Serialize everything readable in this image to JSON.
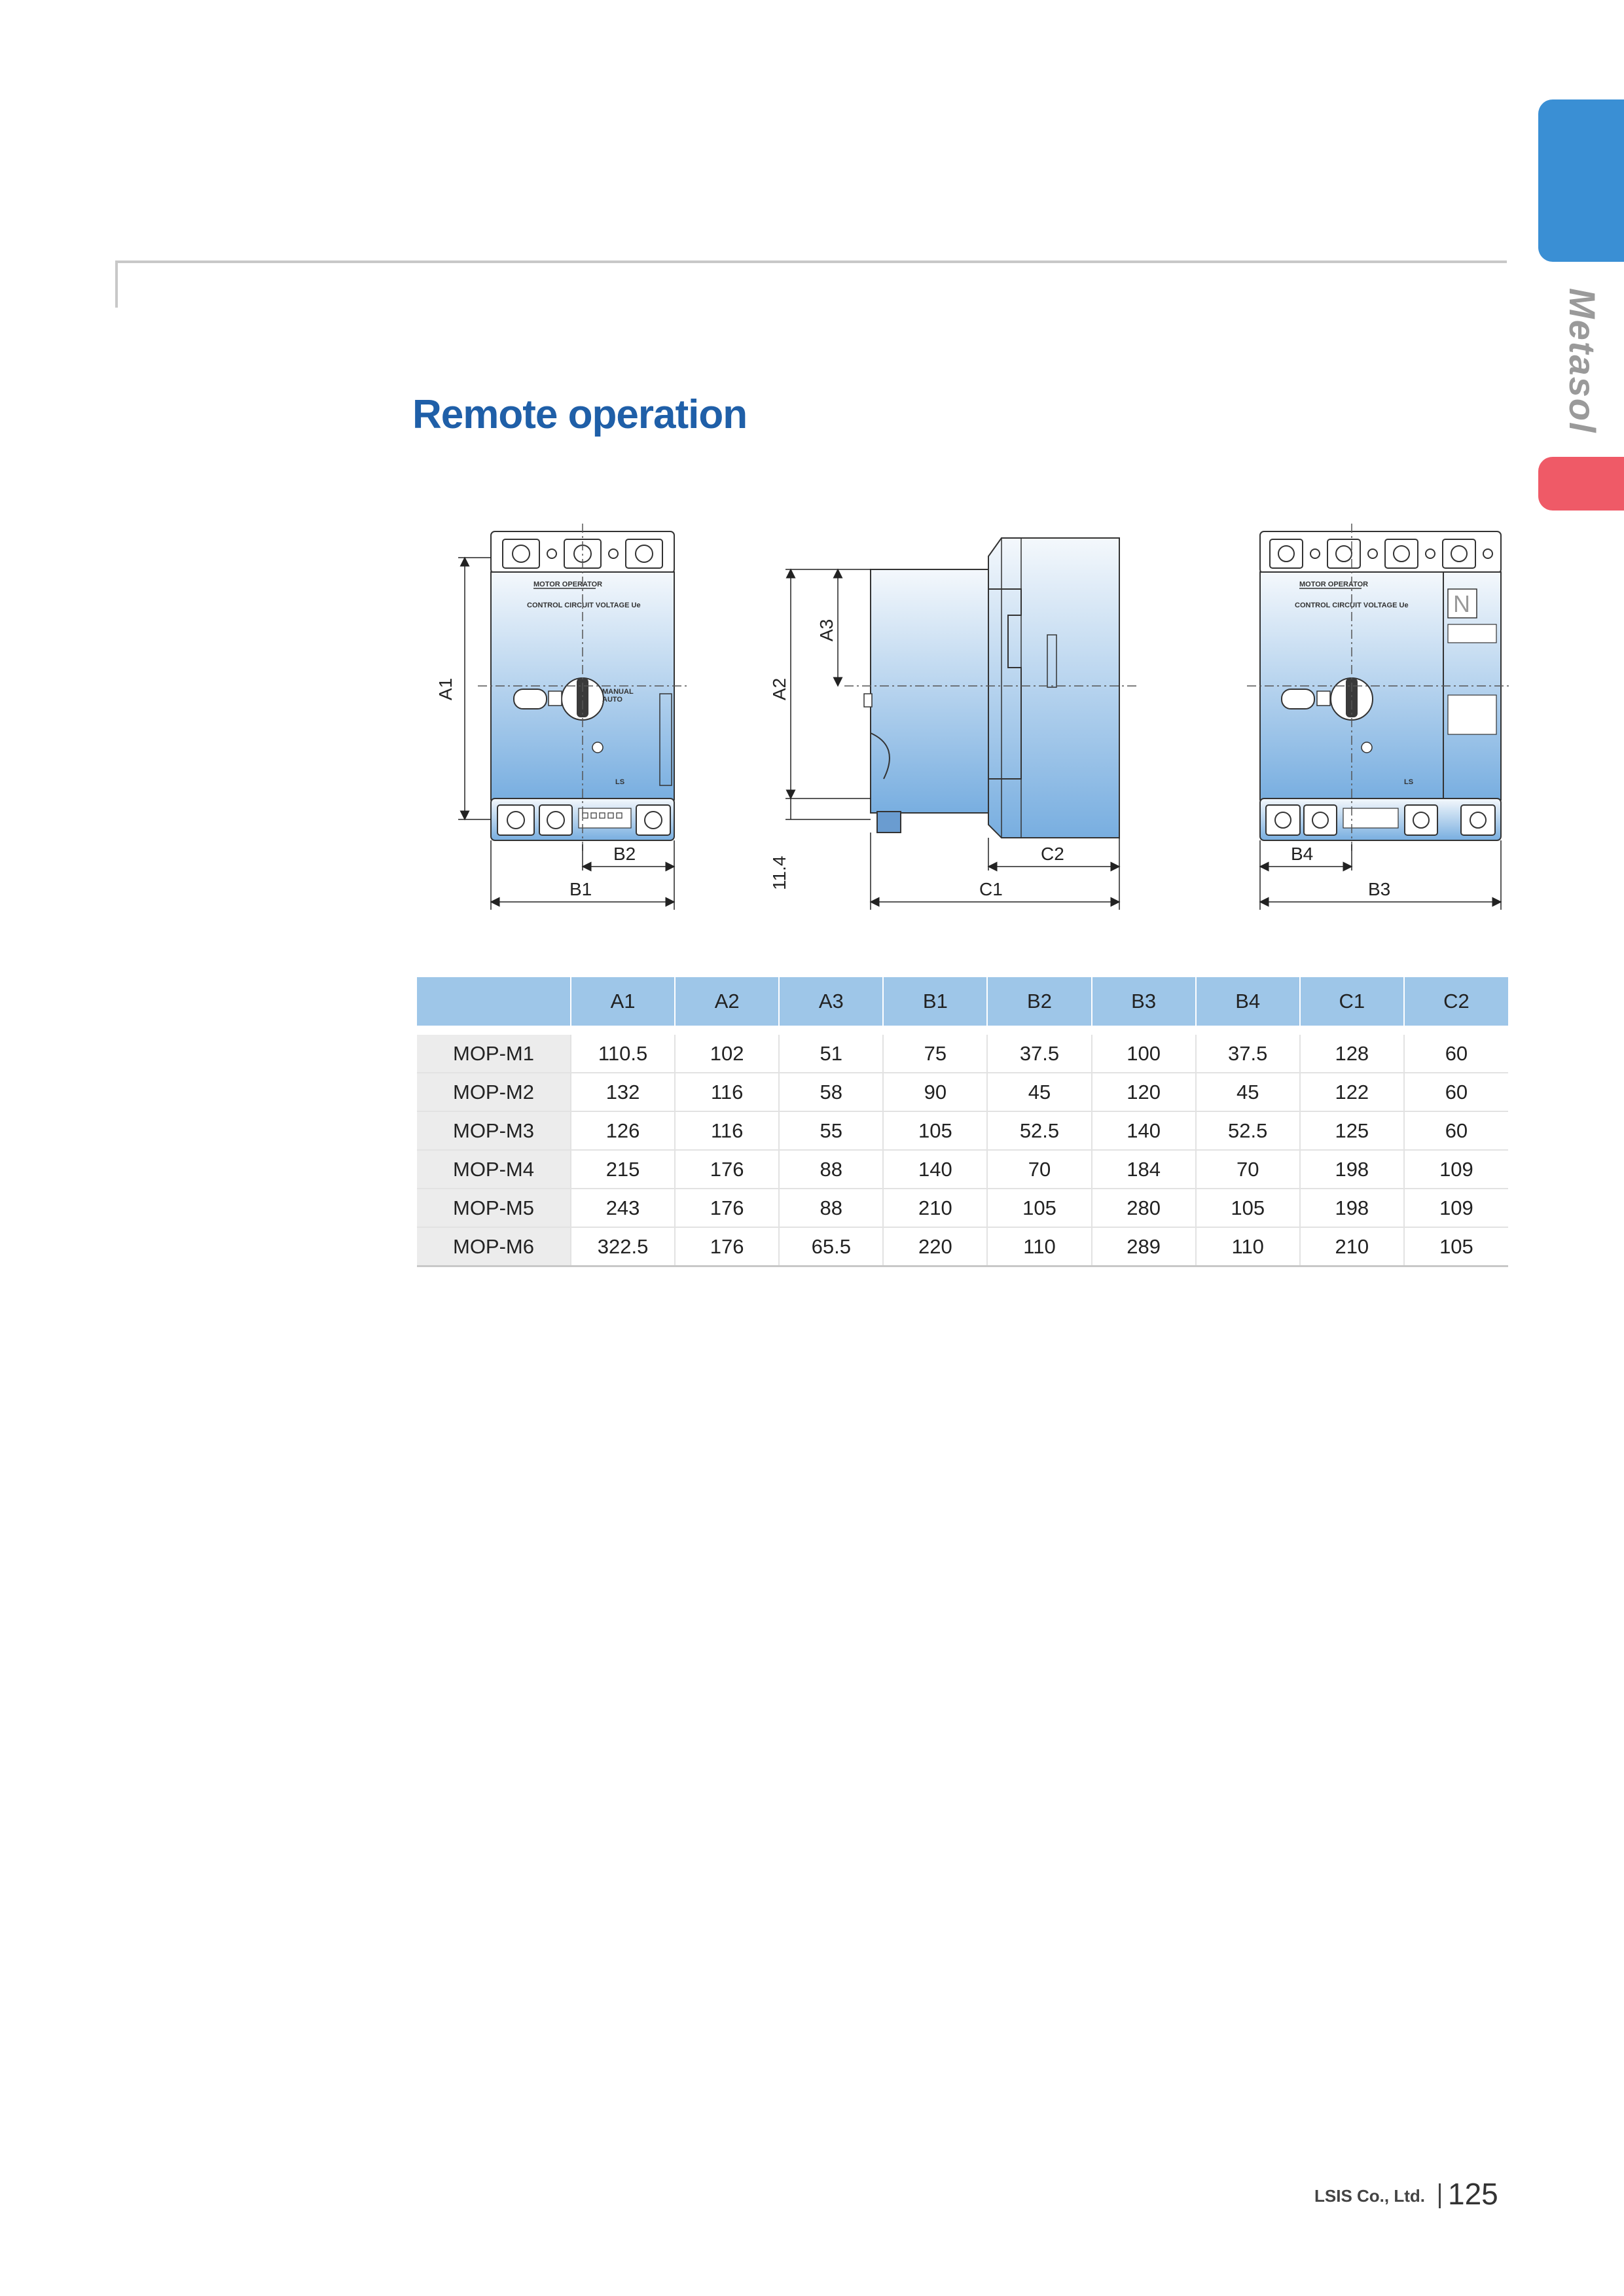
{
  "side_tab": {
    "label": "Metasol"
  },
  "section": {
    "title": "Remote operation"
  },
  "drawing_labels": {
    "front": {
      "a1": "A1",
      "b1": "B1",
      "b2": "B2"
    },
    "side": {
      "a2": "A2",
      "a3": "A3",
      "offset": "11.4",
      "c1": "C1",
      "c2": "C2"
    },
    "front4p": {
      "b3": "B3",
      "b4": "B4",
      "n_mark": "N"
    },
    "panel_text": {
      "header": "MOTOR OPERATOR",
      "sub": "CONTROL CIRCUIT VOLTAGE Ue",
      "brand": "LS"
    }
  },
  "table": {
    "headers": [
      "",
      "A1",
      "A2",
      "A3",
      "B1",
      "B2",
      "B3",
      "B4",
      "C1",
      "C2"
    ],
    "rows": [
      [
        "MOP-M1",
        "110.5",
        "102",
        "51",
        "75",
        "37.5",
        "100",
        "37.5",
        "128",
        "60"
      ],
      [
        "MOP-M2",
        "132",
        "116",
        "58",
        "90",
        "45",
        "120",
        "45",
        "122",
        "60"
      ],
      [
        "MOP-M3",
        "126",
        "116",
        "55",
        "105",
        "52.5",
        "140",
        "52.5",
        "125",
        "60"
      ],
      [
        "MOP-M4",
        "215",
        "176",
        "88",
        "140",
        "70",
        "184",
        "70",
        "198",
        "109"
      ],
      [
        "MOP-M5",
        "243",
        "176",
        "88",
        "210",
        "105",
        "280",
        "105",
        "198",
        "109"
      ],
      [
        "MOP-M6",
        "322.5",
        "176",
        "65.5",
        "220",
        "110",
        "289",
        "110",
        "210",
        "105"
      ]
    ]
  },
  "footer": {
    "company": "LSIS Co., Ltd.",
    "page_number": "125"
  },
  "colors": {
    "title": "#1f5fa8",
    "tab_blue": "#3a8fd4",
    "tab_red": "#ef5a67",
    "table_header": "#9ec6e8",
    "row_label_bg": "#ececec"
  }
}
